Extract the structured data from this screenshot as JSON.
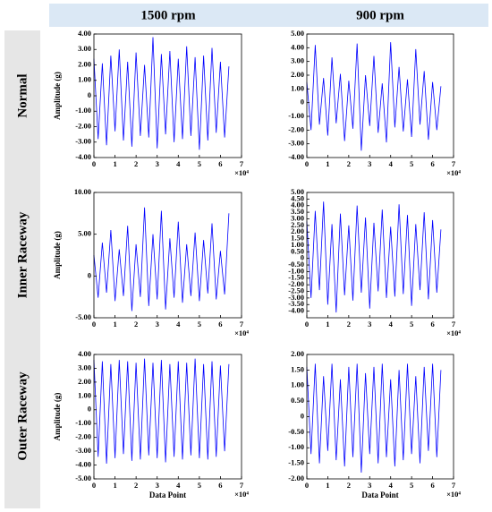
{
  "column_headers": [
    "1500 rpm",
    "900 rpm"
  ],
  "row_headers": [
    "Normal",
    "Inner Raceway",
    "Outer Raceway"
  ],
  "chart_data": [
    {
      "type": "line",
      "ylabel": "Amplitude (g)",
      "x_multiplier": "×10⁴",
      "color": "#0000ff",
      "xlim": [
        0,
        70000
      ],
      "xticks": [
        0,
        {
          "value": 10000,
          "label": "1"
        },
        {
          "value": 20000,
          "label": "2"
        },
        {
          "value": 30000,
          "label": "3"
        },
        {
          "value": 40000,
          "label": "4"
        },
        {
          "value": 50000,
          "label": "5"
        },
        {
          "value": 60000,
          "label": "6"
        },
        {
          "value": 70000,
          "label": "7"
        }
      ],
      "ylim": [
        -4,
        4
      ],
      "yticks": [
        {
          "value": -4,
          "label": "-4.00"
        },
        {
          "value": -3,
          "label": "-3.00"
        },
        {
          "value": -2,
          "label": "-2.00"
        },
        {
          "value": -1,
          "label": "-1.00"
        },
        0,
        {
          "value": 1,
          "label": "1.00"
        },
        {
          "value": 2,
          "label": "2.00"
        },
        {
          "value": 3,
          "label": "3.00"
        },
        {
          "value": 4,
          "label": "4.00"
        }
      ],
      "x": [
        0,
        2000,
        4000,
        6000,
        8000,
        10000,
        12000,
        14000,
        16000,
        18000,
        20000,
        22000,
        24000,
        26000,
        28000,
        30000,
        32000,
        34000,
        36000,
        38000,
        40000,
        42000,
        44000,
        46000,
        48000,
        50000,
        52000,
        54000,
        56000,
        58000,
        60000,
        62000,
        64000
      ],
      "values": [
        2.4,
        -2.8,
        2.1,
        -3.2,
        2.6,
        -2.3,
        3.0,
        -2.9,
        2.2,
        -3.3,
        2.8,
        -2.6,
        2.0,
        -2.7,
        3.8,
        -3.4,
        2.7,
        -2.5,
        2.9,
        -3.0,
        2.4,
        -2.8,
        3.2,
        -2.6,
        2.5,
        -3.5,
        2.6,
        -2.9,
        3.1,
        -2.4,
        2.2,
        -2.7,
        1.9
      ]
    },
    {
      "type": "line",
      "x_multiplier": "×10⁴",
      "color": "#0000ff",
      "xlim": [
        0,
        70000
      ],
      "xticks": [
        0,
        {
          "value": 10000,
          "label": "1"
        },
        {
          "value": 20000,
          "label": "2"
        },
        {
          "value": 30000,
          "label": "3"
        },
        {
          "value": 40000,
          "label": "4"
        },
        {
          "value": 50000,
          "label": "5"
        },
        {
          "value": 60000,
          "label": "6"
        },
        {
          "value": 70000,
          "label": "7"
        }
      ],
      "ylim": [
        -4,
        5
      ],
      "yticks": [
        {
          "value": -4,
          "label": "-4.00"
        },
        {
          "value": -3,
          "label": "-3.00"
        },
        {
          "value": -2,
          "label": "-2.00"
        },
        {
          "value": -1,
          "label": "-1.00"
        },
        0,
        {
          "value": 1,
          "label": "1.00"
        },
        {
          "value": 2,
          "label": "2.00"
        },
        {
          "value": 3,
          "label": "3.00"
        },
        {
          "value": 4,
          "label": "4.00"
        },
        {
          "value": 5,
          "label": "5.00"
        }
      ],
      "x": [
        0,
        2000,
        4000,
        6000,
        8000,
        10000,
        12000,
        14000,
        16000,
        18000,
        20000,
        22000,
        24000,
        26000,
        28000,
        30000,
        32000,
        34000,
        36000,
        38000,
        40000,
        42000,
        44000,
        46000,
        48000,
        50000,
        52000,
        54000,
        56000,
        58000,
        60000,
        62000,
        64000
      ],
      "values": [
        1.5,
        -2.0,
        4.2,
        -1.6,
        1.8,
        -2.4,
        3.3,
        -1.5,
        2.1,
        -2.8,
        1.6,
        -1.9,
        4.3,
        -3.5,
        2.0,
        -1.7,
        3.4,
        -2.2,
        1.4,
        -2.9,
        4.4,
        -1.8,
        2.6,
        -2.1,
        1.7,
        -2.5,
        3.9,
        -1.6,
        2.3,
        -2.7,
        1.5,
        -2.0,
        1.2
      ]
    },
    {
      "type": "line",
      "ylabel": "Amplitude (g)",
      "x_multiplier": "×10⁴",
      "color": "#0000ff",
      "xlim": [
        0,
        70000
      ],
      "xticks": [
        0,
        {
          "value": 10000,
          "label": "1"
        },
        {
          "value": 20000,
          "label": "2"
        },
        {
          "value": 30000,
          "label": "3"
        },
        {
          "value": 40000,
          "label": "4"
        },
        {
          "value": 50000,
          "label": "5"
        },
        {
          "value": 60000,
          "label": "6"
        },
        {
          "value": 70000,
          "label": "7"
        }
      ],
      "ylim": [
        -5,
        10
      ],
      "yticks": [
        {
          "value": -5,
          "label": "-5.00"
        },
        0,
        {
          "value": 5,
          "label": "5.00"
        },
        {
          "value": 10,
          "label": "10.00"
        }
      ],
      "x": [
        0,
        2000,
        4000,
        6000,
        8000,
        10000,
        12000,
        14000,
        16000,
        18000,
        20000,
        22000,
        24000,
        26000,
        28000,
        30000,
        32000,
        34000,
        36000,
        38000,
        40000,
        42000,
        44000,
        46000,
        48000,
        50000,
        52000,
        54000,
        56000,
        58000,
        60000,
        62000,
        64000
      ],
      "values": [
        2.5,
        -2.6,
        4.0,
        -2.0,
        5.5,
        -3.0,
        3.2,
        -2.4,
        6.0,
        -4.2,
        3.8,
        -2.5,
        8.2,
        -3.6,
        5.0,
        -2.8,
        7.8,
        -4.0,
        4.5,
        -2.6,
        6.5,
        -3.2,
        3.8,
        -2.4,
        5.2,
        -3.0,
        4.3,
        -2.1,
        6.3,
        -2.8,
        3.0,
        -2.2,
        7.5
      ]
    },
    {
      "type": "line",
      "x_multiplier": "×10⁴",
      "color": "#0000ff",
      "xlim": [
        0,
        70000
      ],
      "xticks": [
        0,
        {
          "value": 10000,
          "label": "1"
        },
        {
          "value": 20000,
          "label": "2"
        },
        {
          "value": 30000,
          "label": "3"
        },
        {
          "value": 40000,
          "label": "4"
        },
        {
          "value": 50000,
          "label": "5"
        },
        {
          "value": 60000,
          "label": "6"
        },
        {
          "value": 70000,
          "label": "7"
        }
      ],
      "ylim": [
        -4.5,
        5
      ],
      "yticks": [
        {
          "value": -4,
          "label": "-4.00"
        },
        {
          "value": -3.5,
          "label": "-3.50"
        },
        {
          "value": -3,
          "label": "-3.00"
        },
        {
          "value": -2.5,
          "label": "-2.50"
        },
        {
          "value": -2,
          "label": "-2.00"
        },
        {
          "value": -1.5,
          "label": "-1.50"
        },
        {
          "value": -1,
          "label": "-1.00"
        },
        {
          "value": -0.5,
          "label": "-0.50"
        },
        0,
        {
          "value": 0.5,
          "label": "0.50"
        },
        {
          "value": 1,
          "label": "1.00"
        },
        {
          "value": 1.5,
          "label": "1.50"
        },
        {
          "value": 2,
          "label": "2.00"
        },
        {
          "value": 2.5,
          "label": "2.50"
        },
        {
          "value": 3,
          "label": "3.00"
        },
        {
          "value": 3.5,
          "label": "3.50"
        },
        {
          "value": 4,
          "label": "4.00"
        },
        {
          "value": 4.5,
          "label": "4.50"
        },
        {
          "value": 5,
          "label": "5.00"
        }
      ],
      "x": [
        0,
        2000,
        4000,
        6000,
        8000,
        10000,
        12000,
        14000,
        16000,
        18000,
        20000,
        22000,
        24000,
        26000,
        28000,
        30000,
        32000,
        34000,
        36000,
        38000,
        40000,
        42000,
        44000,
        46000,
        48000,
        50000,
        52000,
        54000,
        56000,
        58000,
        60000,
        62000,
        64000
      ],
      "values": [
        2.8,
        -3.0,
        3.6,
        -2.4,
        4.3,
        -3.5,
        2.6,
        -4.1,
        3.4,
        -2.8,
        2.5,
        -3.2,
        4.0,
        -2.6,
        3.1,
        -3.8,
        2.7,
        -2.5,
        3.7,
        -3.0,
        2.4,
        -2.9,
        4.1,
        -2.7,
        3.3,
        -3.6,
        2.6,
        -2.4,
        3.5,
        -3.1,
        2.9,
        -2.6,
        2.2
      ]
    },
    {
      "type": "line",
      "ylabel": "Amplitude (g)",
      "xlabel": "Data Point",
      "x_multiplier": "×10⁴",
      "color": "#0000ff",
      "xlim": [
        0,
        70000
      ],
      "xticks": [
        0,
        {
          "value": 10000,
          "label": "1"
        },
        {
          "value": 20000,
          "label": "2"
        },
        {
          "value": 30000,
          "label": "3"
        },
        {
          "value": 40000,
          "label": "4"
        },
        {
          "value": 50000,
          "label": "5"
        },
        {
          "value": 60000,
          "label": "6"
        },
        {
          "value": 70000,
          "label": "7"
        }
      ],
      "ylim": [
        -5,
        4
      ],
      "yticks": [
        {
          "value": -5,
          "label": "-5.00"
        },
        {
          "value": -4,
          "label": "-4.00"
        },
        {
          "value": -3,
          "label": "-3.00"
        },
        {
          "value": -2,
          "label": "-2.00"
        },
        {
          "value": -1,
          "label": "-1.00"
        },
        0,
        {
          "value": 1,
          "label": "1.00"
        },
        {
          "value": 2,
          "label": "2.00"
        },
        {
          "value": 3,
          "label": "3.00"
        },
        {
          "value": 4,
          "label": "4.00"
        }
      ],
      "x": [
        0,
        2000,
        4000,
        6000,
        8000,
        10000,
        12000,
        14000,
        16000,
        18000,
        20000,
        22000,
        24000,
        26000,
        28000,
        30000,
        32000,
        34000,
        36000,
        38000,
        40000,
        42000,
        44000,
        46000,
        48000,
        50000,
        52000,
        54000,
        56000,
        58000,
        60000,
        62000,
        64000
      ],
      "values": [
        3.6,
        -3.4,
        3.5,
        -3.9,
        3.3,
        -3.5,
        3.6,
        -3.2,
        3.5,
        -3.7,
        3.4,
        -3.6,
        3.7,
        -3.3,
        3.4,
        -3.5,
        3.6,
        -3.8,
        3.3,
        -3.4,
        3.5,
        -3.6,
        3.4,
        -3.3,
        3.7,
        -3.5,
        3.3,
        -3.6,
        3.5,
        -3.4,
        3.2,
        -3.0,
        3.3
      ]
    },
    {
      "type": "line",
      "xlabel": "Data Point",
      "x_multiplier": "×10⁴",
      "color": "#0000ff",
      "xlim": [
        0,
        70000
      ],
      "xticks": [
        0,
        {
          "value": 10000,
          "label": "1"
        },
        {
          "value": 20000,
          "label": "2"
        },
        {
          "value": 30000,
          "label": "3"
        },
        {
          "value": 40000,
          "label": "4"
        },
        {
          "value": 50000,
          "label": "5"
        },
        {
          "value": 60000,
          "label": "6"
        },
        {
          "value": 70000,
          "label": "7"
        }
      ],
      "ylim": [
        -2,
        2
      ],
      "yticks": [
        {
          "value": -2,
          "label": "-2.00"
        },
        {
          "value": -1.5,
          "label": "-1.50"
        },
        {
          "value": -1,
          "label": "-1.00"
        },
        {
          "value": -0.5,
          "label": "-0.50"
        },
        0,
        {
          "value": 0.5,
          "label": "0.50"
        },
        {
          "value": 1,
          "label": "1.00"
        },
        {
          "value": 1.5,
          "label": "1.50"
        },
        {
          "value": 2,
          "label": "2.00"
        }
      ],
      "x": [
        0,
        2000,
        4000,
        6000,
        8000,
        10000,
        12000,
        14000,
        16000,
        18000,
        20000,
        22000,
        24000,
        26000,
        28000,
        30000,
        32000,
        34000,
        36000,
        38000,
        40000,
        42000,
        44000,
        46000,
        48000,
        50000,
        52000,
        54000,
        56000,
        58000,
        60000,
        62000,
        64000
      ],
      "values": [
        1.6,
        -1.2,
        1.7,
        -1.5,
        1.3,
        -1.1,
        1.7,
        -1.4,
        1.2,
        -1.6,
        1.6,
        -1.3,
        1.7,
        -1.8,
        1.4,
        -1.2,
        1.6,
        -1.5,
        1.7,
        -1.3,
        1.2,
        -1.6,
        1.5,
        -1.4,
        1.7,
        -1.2,
        1.3,
        -1.5,
        1.6,
        -1.1,
        1.7,
        -1.3,
        1.5
      ]
    }
  ]
}
